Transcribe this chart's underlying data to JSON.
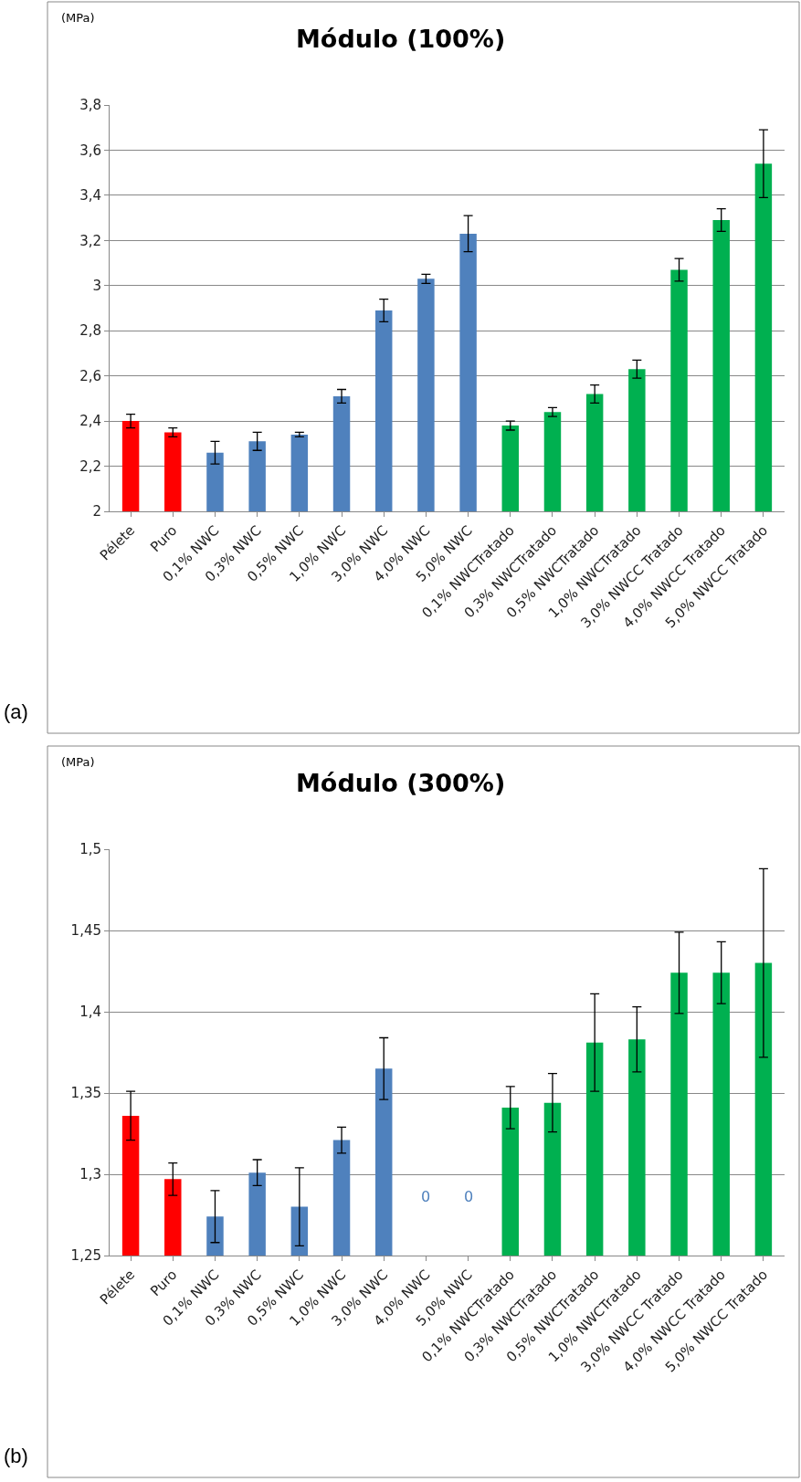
{
  "chart_data": [
    {
      "type": "bar",
      "title": "Módulo (100%)",
      "ylabel": "(MPa)",
      "annotations": [
        "(a)"
      ],
      "categories": [
        "Pélete",
        "Puro",
        "0,1% NWC",
        "0,3% NWC",
        "0,5% NWC",
        "1,0% NWC",
        "3,0% NWC",
        "4,0% NWC",
        "5,0% NWC",
        "0,1% NWCTratado",
        "0,3% NWCTratado",
        "0,5% NWCTratado",
        "1,0% NWCTratado",
        "3,0% NWCC Tratado",
        "4,0% NWCC Tratado",
        "5,0% NWCC Tratado"
      ],
      "values": [
        2.4,
        2.35,
        2.26,
        2.31,
        2.34,
        2.51,
        2.89,
        3.03,
        3.23,
        2.38,
        2.44,
        2.52,
        2.63,
        3.07,
        3.29,
        3.54
      ],
      "errors": [
        0.03,
        0.02,
        0.05,
        0.04,
        0.01,
        0.03,
        0.05,
        0.02,
        0.08,
        0.02,
        0.02,
        0.04,
        0.04,
        0.05,
        0.05,
        0.15
      ],
      "colors": [
        "#ff0000",
        "#ff0000",
        "#4f81bd",
        "#4f81bd",
        "#4f81bd",
        "#4f81bd",
        "#4f81bd",
        "#4f81bd",
        "#4f81bd",
        "#00b050",
        "#00b050",
        "#00b050",
        "#00b050",
        "#00b050",
        "#00b050",
        "#00b050"
      ],
      "ylim": [
        2,
        3.8
      ],
      "yticks": [
        {
          "value": 2,
          "label": "2"
        },
        {
          "value": 2.2,
          "label": "2,2"
        },
        {
          "value": 2.4,
          "label": "2,4"
        },
        {
          "value": 2.6,
          "label": "2,6"
        },
        {
          "value": 2.8,
          "label": "2,8"
        },
        {
          "value": 3,
          "label": "3"
        },
        {
          "value": 3.2,
          "label": "3,2"
        },
        {
          "value": 3.4,
          "label": "3,4"
        },
        {
          "value": 3.6,
          "label": "3,6"
        },
        {
          "value": 3.8,
          "label": "3,8"
        }
      ],
      "grid": "y"
    },
    {
      "type": "bar",
      "title": "Módulo (300%)",
      "ylabel": "(MPa)",
      "annotations": [
        "(b)",
        "0",
        "0"
      ],
      "categories": [
        "Pélete",
        "Puro",
        "0,1% NWC",
        "0,3% NWC",
        "0,5% NWC",
        "1,0% NWC",
        "3,0% NWC",
        "4,0% NWC",
        "5,0% NWC",
        "0,1% NWCTratado",
        "0,3% NWCTratado",
        "0,5% NWCTratado",
        "1,0% NWCTratado",
        "3,0% NWCC Tratado",
        "4,0% NWCC Tratado",
        "5,0% NWCC Tratado"
      ],
      "values": [
        1.336,
        1.297,
        1.274,
        1.301,
        1.28,
        1.321,
        1.365,
        null,
        null,
        1.341,
        1.344,
        1.381,
        1.383,
        1.424,
        1.424,
        1.43
      ],
      "errors": [
        0.015,
        0.01,
        0.016,
        0.008,
        0.024,
        0.008,
        0.019,
        null,
        null,
        0.013,
        0.018,
        0.03,
        0.02,
        0.025,
        0.019,
        0.058
      ],
      "colors": [
        "#ff0000",
        "#ff0000",
        "#4f81bd",
        "#4f81bd",
        "#4f81bd",
        "#4f81bd",
        "#4f81bd",
        "#4f81bd",
        "#4f81bd",
        "#00b050",
        "#00b050",
        "#00b050",
        "#00b050",
        "#00b050",
        "#00b050",
        "#00b050"
      ],
      "ylim": [
        1.25,
        1.5
      ],
      "yticks": [
        {
          "value": 1.25,
          "label": "1,25"
        },
        {
          "value": 1.3,
          "label": "1,3"
        },
        {
          "value": 1.35,
          "label": "1,35"
        },
        {
          "value": 1.4,
          "label": "1,4"
        },
        {
          "value": 1.45,
          "label": "1,45"
        },
        {
          "value": 1.5,
          "label": "1,5"
        }
      ],
      "grid": "y"
    }
  ]
}
